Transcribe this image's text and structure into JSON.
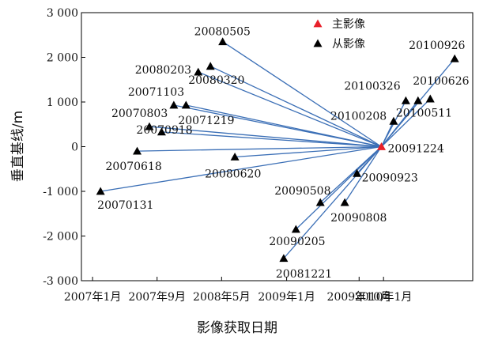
{
  "chart_data": {
    "type": "scatter",
    "xlabel": "影像获取日期",
    "ylabel": "垂直基线/m",
    "ylim": [
      -3000,
      3000
    ],
    "x_ticks": [
      {
        "date": "2007-01-01",
        "label": "2007年1月"
      },
      {
        "date": "2007-09-01",
        "label": "2007年9月"
      },
      {
        "date": "2008-05-01",
        "label": "2008年5月"
      },
      {
        "date": "2009-01-01",
        "label": "2009年1月"
      },
      {
        "date": "2009-10-01",
        "label": "2009年10月"
      },
      {
        "date": "2010-01-01",
        "label": "2010年1月"
      }
    ],
    "y_ticks": [
      {
        "value": 3000,
        "label": "3 000"
      },
      {
        "value": 2000,
        "label": "2 000"
      },
      {
        "value": 1000,
        "label": "1 000"
      },
      {
        "value": 0,
        "label": "0"
      },
      {
        "value": -1000,
        "label": "-1 000"
      },
      {
        "value": -2000,
        "label": "-2 000"
      },
      {
        "value": -3000,
        "label": "-3 000"
      }
    ],
    "legend": {
      "position": "top-right",
      "entries": [
        {
          "name": "主影像",
          "color": "#e8202a"
        },
        {
          "name": "从影像",
          "color": "#000000"
        }
      ]
    },
    "line_color": "#3b6fb6",
    "master": {
      "label": "20091224",
      "date": "2009-12-24",
      "baseline": 0
    },
    "slaves": [
      {
        "label": "20070131",
        "date": "2007-01-31",
        "baseline": -1000
      },
      {
        "label": "20070618",
        "date": "2007-06-18",
        "baseline": -100
      },
      {
        "label": "20070803",
        "date": "2007-08-03",
        "baseline": 450
      },
      {
        "label": "20070918",
        "date": "2007-09-18",
        "baseline": 330
      },
      {
        "label": "20071103",
        "date": "2007-11-03",
        "baseline": 930
      },
      {
        "label": "20071219",
        "date": "2007-12-19",
        "baseline": 930
      },
      {
        "label": "20080203",
        "date": "2008-02-03",
        "baseline": 1670
      },
      {
        "label": "20080320",
        "date": "2008-03-20",
        "baseline": 1800
      },
      {
        "label": "20080505",
        "date": "2008-05-05",
        "baseline": 2350
      },
      {
        "label": "20080620",
        "date": "2008-06-20",
        "baseline": -230
      },
      {
        "label": "20081221",
        "date": "2008-12-21",
        "baseline": -2500
      },
      {
        "label": "20090205",
        "date": "2009-02-05",
        "baseline": -1850
      },
      {
        "label": "20090508",
        "date": "2009-05-08",
        "baseline": -1250
      },
      {
        "label": "20090808",
        "date": "2009-08-08",
        "baseline": -1250
      },
      {
        "label": "20090923",
        "date": "2009-09-23",
        "baseline": -600
      },
      {
        "label": "20100208",
        "date": "2010-02-08",
        "baseline": 570
      },
      {
        "label": "20100326",
        "date": "2010-03-26",
        "baseline": 1030
      },
      {
        "label": "20100511",
        "date": "2010-05-11",
        "baseline": 1030
      },
      {
        "label": "20100626",
        "date": "2010-06-26",
        "baseline": 1070
      },
      {
        "label": "20100926",
        "date": "2010-09-26",
        "baseline": 1970
      }
    ]
  }
}
